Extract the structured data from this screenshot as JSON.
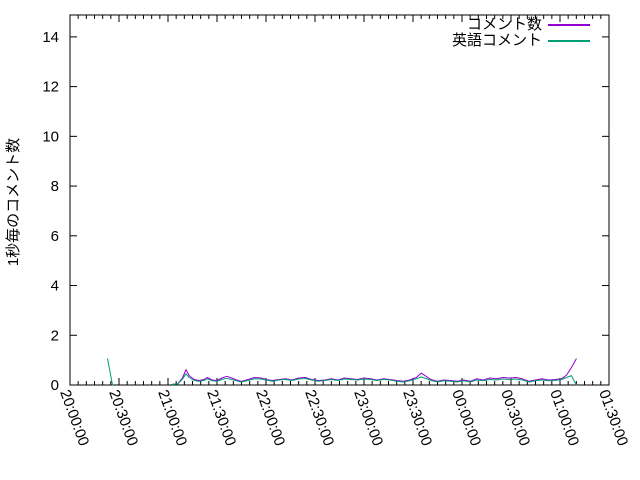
{
  "chart_data": {
    "type": "line",
    "title": "",
    "xlabel": "",
    "ylabel": "1秒毎のコメント数",
    "x_unit": "minutes after 20:00:00",
    "xlim_minutes": [
      0,
      330
    ],
    "ylim": [
      0,
      14.88
    ],
    "yticks": [
      0,
      2,
      4,
      6,
      8,
      10,
      12,
      14
    ],
    "x_tick_minutes": [
      0,
      30,
      60,
      90,
      120,
      150,
      180,
      210,
      240,
      270,
      300,
      330
    ],
    "x_tick_labels": [
      "20:00:00",
      "20:30:00",
      "21:00:00",
      "21:30:00",
      "22:00:00",
      "22:30:00",
      "23:00:00",
      "23:30:00",
      "00:00:00",
      "00:30:00",
      "01:00:00",
      "01:30:00"
    ],
    "minor_x_tick_every_min": 5,
    "grid": false,
    "legend_position": "top-right-inside",
    "series": [
      {
        "name": "コメント数",
        "color": "#9400d3",
        "points": [
          [
            62,
            0.02
          ],
          [
            66,
            0.05
          ],
          [
            69,
            0.3
          ],
          [
            71,
            0.62
          ],
          [
            73,
            0.38
          ],
          [
            76,
            0.22
          ],
          [
            79,
            0.18
          ],
          [
            82,
            0.22
          ],
          [
            84,
            0.3
          ],
          [
            87,
            0.2
          ],
          [
            90,
            0.18
          ],
          [
            93,
            0.28
          ],
          [
            96,
            0.35
          ],
          [
            99,
            0.28
          ],
          [
            102,
            0.2
          ],
          [
            105,
            0.15
          ],
          [
            109,
            0.22
          ],
          [
            113,
            0.3
          ],
          [
            117,
            0.28
          ],
          [
            120,
            0.22
          ],
          [
            124,
            0.18
          ],
          [
            128,
            0.22
          ],
          [
            132,
            0.25
          ],
          [
            136,
            0.2
          ],
          [
            140,
            0.28
          ],
          [
            144,
            0.3
          ],
          [
            148,
            0.22
          ],
          [
            152,
            0.18
          ],
          [
            156,
            0.2
          ],
          [
            160,
            0.25
          ],
          [
            164,
            0.2
          ],
          [
            168,
            0.28
          ],
          [
            172,
            0.25
          ],
          [
            176,
            0.22
          ],
          [
            180,
            0.28
          ],
          [
            184,
            0.25
          ],
          [
            188,
            0.2
          ],
          [
            192,
            0.25
          ],
          [
            196,
            0.22
          ],
          [
            200,
            0.18
          ],
          [
            204,
            0.15
          ],
          [
            208,
            0.2
          ],
          [
            212,
            0.3
          ],
          [
            215,
            0.48
          ],
          [
            218,
            0.35
          ],
          [
            221,
            0.22
          ],
          [
            225,
            0.15
          ],
          [
            229,
            0.2
          ],
          [
            233,
            0.18
          ],
          [
            237,
            0.15
          ],
          [
            241,
            0.2
          ],
          [
            245,
            0.15
          ],
          [
            249,
            0.25
          ],
          [
            253,
            0.2
          ],
          [
            257,
            0.28
          ],
          [
            261,
            0.25
          ],
          [
            265,
            0.3
          ],
          [
            269,
            0.28
          ],
          [
            273,
            0.3
          ],
          [
            277,
            0.25
          ],
          [
            281,
            0.15
          ],
          [
            285,
            0.2
          ],
          [
            289,
            0.25
          ],
          [
            293,
            0.2
          ],
          [
            297,
            0.22
          ],
          [
            301,
            0.25
          ],
          [
            304,
            0.4
          ],
          [
            307,
            0.7
          ],
          [
            310,
            1.05
          ]
        ]
      },
      {
        "name": "英語コメント",
        "color": "#009e73",
        "points": [
          [
            23,
            1.05
          ],
          [
            26,
            0
          ],
          null,
          [
            62,
            0.02
          ],
          [
            66,
            0.04
          ],
          [
            69,
            0.25
          ],
          [
            71,
            0.45
          ],
          [
            73,
            0.3
          ],
          [
            76,
            0.18
          ],
          [
            79,
            0.15
          ],
          [
            82,
            0.18
          ],
          [
            84,
            0.25
          ],
          [
            87,
            0.17
          ],
          [
            90,
            0.15
          ],
          [
            93,
            0.22
          ],
          [
            96,
            0.27
          ],
          [
            99,
            0.22
          ],
          [
            102,
            0.17
          ],
          [
            105,
            0.12
          ],
          [
            109,
            0.18
          ],
          [
            113,
            0.25
          ],
          [
            117,
            0.24
          ],
          [
            120,
            0.2
          ],
          [
            124,
            0.15
          ],
          [
            128,
            0.2
          ],
          [
            132,
            0.22
          ],
          [
            136,
            0.18
          ],
          [
            140,
            0.24
          ],
          [
            144,
            0.26
          ],
          [
            148,
            0.2
          ],
          [
            152,
            0.15
          ],
          [
            156,
            0.18
          ],
          [
            160,
            0.22
          ],
          [
            164,
            0.18
          ],
          [
            168,
            0.24
          ],
          [
            172,
            0.22
          ],
          [
            176,
            0.2
          ],
          [
            180,
            0.24
          ],
          [
            184,
            0.22
          ],
          [
            188,
            0.18
          ],
          [
            192,
            0.22
          ],
          [
            196,
            0.2
          ],
          [
            200,
            0.15
          ],
          [
            204,
            0.12
          ],
          [
            208,
            0.17
          ],
          [
            212,
            0.25
          ],
          [
            215,
            0.32
          ],
          [
            218,
            0.26
          ],
          [
            221,
            0.18
          ],
          [
            225,
            0.12
          ],
          [
            229,
            0.17
          ],
          [
            233,
            0.15
          ],
          [
            237,
            0.12
          ],
          [
            241,
            0.17
          ],
          [
            245,
            0.12
          ],
          [
            249,
            0.2
          ],
          [
            253,
            0.17
          ],
          [
            257,
            0.22
          ],
          [
            261,
            0.2
          ],
          [
            265,
            0.24
          ],
          [
            269,
            0.22
          ],
          [
            273,
            0.24
          ],
          [
            277,
            0.2
          ],
          [
            281,
            0.12
          ],
          [
            285,
            0.17
          ],
          [
            289,
            0.2
          ],
          [
            293,
            0.17
          ],
          [
            297,
            0.18
          ],
          [
            301,
            0.22
          ],
          [
            304,
            0.3
          ],
          [
            307,
            0.38
          ],
          [
            309,
            0.12
          ],
          [
            310,
            0
          ]
        ]
      }
    ]
  },
  "colors": {
    "axis": "#000000",
    "text": "#000000",
    "background": "#ffffff",
    "series1": "#9400d3",
    "series2": "#009e73"
  }
}
